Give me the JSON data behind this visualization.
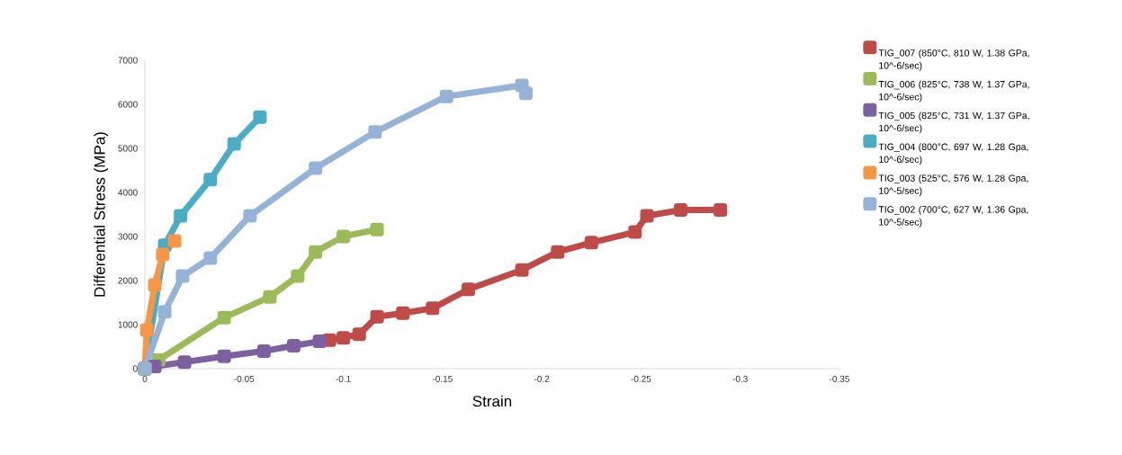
{
  "chart_data": {
    "type": "line",
    "xlabel": "Strain",
    "ylabel": "Differential Stress (MPa)",
    "xlim": [
      0,
      -0.35
    ],
    "xticks": [
      0,
      -0.05,
      -0.1,
      -0.15,
      -0.2,
      -0.25,
      -0.3,
      -0.35
    ],
    "ylim": [
      0,
      7000
    ],
    "yticks": [
      0,
      1000,
      2000,
      3000,
      4000,
      5000,
      6000,
      7000
    ],
    "grid": false,
    "legend": "right",
    "marker": "square",
    "line_style": "solid",
    "series": [
      {
        "name": "TIG_007 (850°C, 810 W, 1.38 GPa, 10^-6/sec)",
        "color": "#be4b48",
        "x": [
          -0.093,
          -0.1,
          -0.108,
          -0.117,
          -0.13,
          -0.145,
          -0.163,
          -0.19,
          -0.208,
          -0.225,
          -0.247,
          -0.253,
          -0.27,
          -0.29
        ],
        "values": [
          650,
          700,
          780,
          1180,
          1260,
          1370,
          1800,
          2240,
          2650,
          2860,
          3100,
          3470,
          3600,
          3600
        ]
      },
      {
        "name": "TIG_006 (825°C, 738 W, 1.37 GPa, 10^-6/sec)",
        "color": "#9bbb59",
        "x": [
          0,
          -0.007,
          -0.04,
          -0.063,
          -0.077,
          -0.086,
          -0.1,
          -0.117
        ],
        "values": [
          0,
          200,
          1160,
          1630,
          2100,
          2650,
          3000,
          3160
        ]
      },
      {
        "name": "TIG_005 (825°C, 731 W, 1.37 GPa, 10^-6/sec)",
        "color": "#7d60a0",
        "x": [
          0,
          -0.005,
          -0.02,
          -0.04,
          -0.06,
          -0.075,
          -0.088
        ],
        "values": [
          0,
          50,
          150,
          280,
          400,
          520,
          620
        ]
      },
      {
        "name": "TIG_004 (800°C, 697 W, 1.28 Gpa, 10^-6/sec)",
        "color": "#4bacc6",
        "x": [
          0,
          -0.01,
          -0.018,
          -0.033,
          -0.045,
          -0.058
        ],
        "values": [
          0,
          2800,
          3470,
          4290,
          5100,
          5710
        ]
      },
      {
        "name": "TIG_003 (525°C, 576 W, 1.28 Gpa, 10^-5/sec)",
        "color": "#f79646",
        "x": [
          0,
          -0.001,
          -0.005,
          -0.009,
          -0.015
        ],
        "values": [
          0,
          880,
          1900,
          2590,
          2900
        ]
      },
      {
        "name": "TIG_002 (700°C, 627 W, 1.36 Gpa, 10^-5/sec)",
        "color": "#95b3d7",
        "x": [
          0,
          -0.01,
          -0.019,
          -0.033,
          -0.053,
          -0.086,
          -0.116,
          -0.152,
          -0.19,
          -0.192
        ],
        "values": [
          0,
          1290,
          2100,
          2510,
          3470,
          4550,
          5370,
          6180,
          6430,
          6250
        ]
      }
    ]
  }
}
